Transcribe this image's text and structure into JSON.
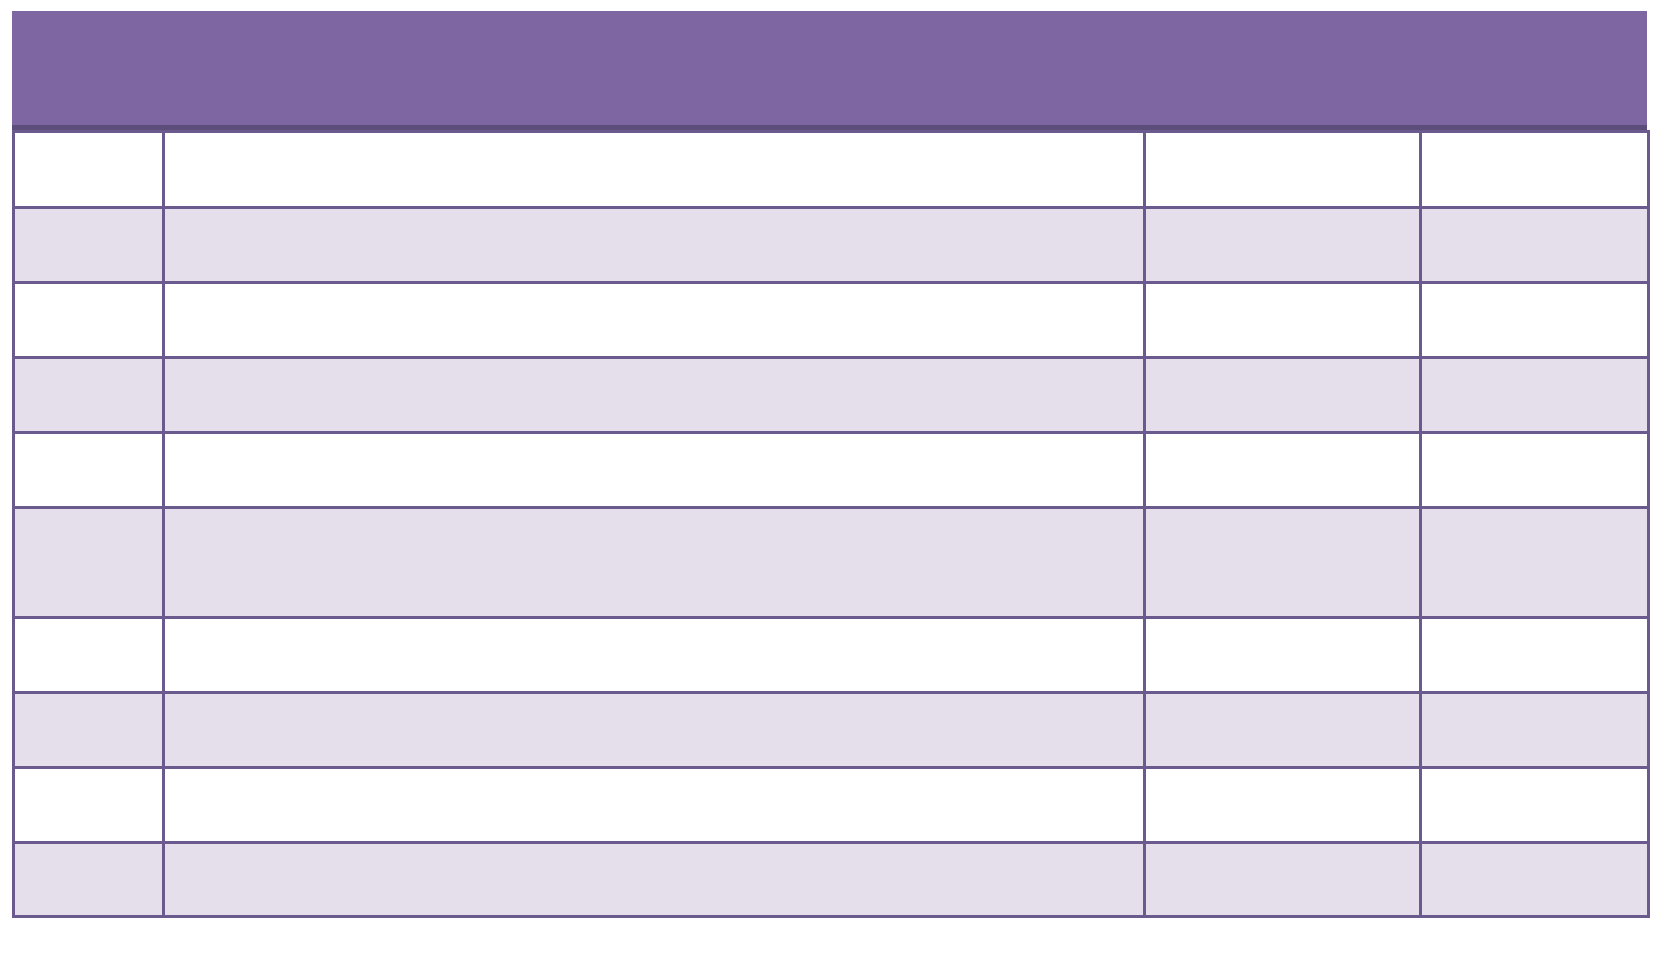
{
  "colors": {
    "page_background": "#ffffff",
    "header_fill": "#7e66a3",
    "header_bottom_border": "#5d4d7a",
    "grid_border": "#6a5a8e",
    "row_fill_plain": "#ffffff",
    "row_fill_shaded": "#e5dfec"
  },
  "table": {
    "header": {
      "title": ""
    },
    "num_rows": 10,
    "num_cols": 4,
    "banding": "even rows shaded",
    "rows": [
      {
        "cells": [
          "",
          "",
          "",
          ""
        ]
      },
      {
        "cells": [
          "",
          "",
          "",
          ""
        ]
      },
      {
        "cells": [
          "",
          "",
          "",
          ""
        ]
      },
      {
        "cells": [
          "",
          "",
          "",
          ""
        ]
      },
      {
        "cells": [
          "",
          "",
          "",
          ""
        ]
      },
      {
        "cells": [
          "",
          "",
          "",
          ""
        ]
      },
      {
        "cells": [
          "",
          "",
          "",
          ""
        ]
      },
      {
        "cells": [
          "",
          "",
          "",
          ""
        ]
      },
      {
        "cells": [
          "",
          "",
          "",
          ""
        ]
      },
      {
        "cells": [
          "",
          "",
          "",
          ""
        ]
      }
    ]
  }
}
